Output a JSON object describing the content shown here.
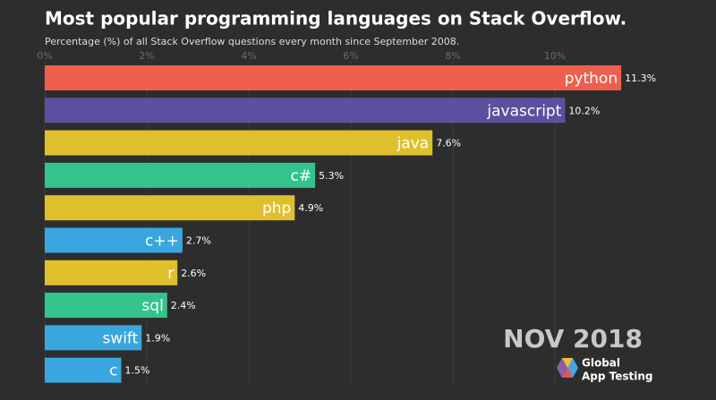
{
  "chart_data": {
    "type": "hbar",
    "title": "Most popular programming languages on Stack Overflow.",
    "subtitle": "Percentage (%) of all Stack Overflow questions every month since September 2008.",
    "annotation": "NOV 2018",
    "categories": [
      "python",
      "javascript",
      "java",
      "c#",
      "php",
      "c++",
      "r",
      "sql",
      "swift",
      "c"
    ],
    "values": [
      11.3,
      10.2,
      7.6,
      5.3,
      4.9,
      2.7,
      2.6,
      2.4,
      1.9,
      1.5
    ],
    "value_labels": [
      "11.3%",
      "10.2%",
      "7.6%",
      "5.3%",
      "4.9%",
      "2.7%",
      "2.6%",
      "2.4%",
      "1.9%",
      "1.5%"
    ],
    "colors": [
      "#ee5f4e",
      "#5e4f9e",
      "#dfc02c",
      "#35c38c",
      "#dfc02c",
      "#3aa6df",
      "#dfc02c",
      "#35c38c",
      "#3aa6df",
      "#3aa6df"
    ],
    "xlim": [
      0,
      13
    ],
    "xticks": [
      {
        "value": 0,
        "label": "0%"
      },
      {
        "value": 2,
        "label": "2%"
      },
      {
        "value": 4,
        "label": "4%"
      },
      {
        "value": 6,
        "label": "6%"
      },
      {
        "value": 8,
        "label": "8%"
      },
      {
        "value": 10,
        "label": "10%"
      }
    ],
    "grid": true
  },
  "logo": {
    "line1": "Global",
    "line2": "App Testing"
  }
}
